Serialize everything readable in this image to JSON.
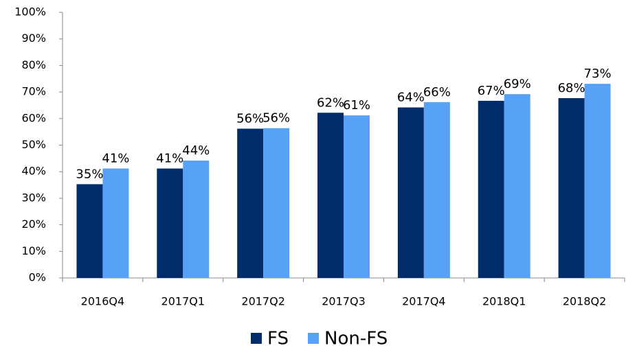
{
  "chart_data": {
    "type": "bar",
    "categories": [
      "2016Q4",
      "2017Q1",
      "2017Q2",
      "2017Q3",
      "2017Q4",
      "2018Q1",
      "2018Q2"
    ],
    "series": [
      {
        "name": "FS",
        "color": "#002d6a",
        "values": [
          35.3,
          41.2,
          56.2,
          62.2,
          64.2,
          66.7,
          67.7
        ],
        "value_labels": [
          "35%",
          "41%",
          "56%",
          "62%",
          "64%",
          "67%",
          "68%"
        ]
      },
      {
        "name": "Non-FS",
        "color": "#57a1f7",
        "values": [
          41.2,
          44.2,
          56.4,
          61.2,
          66.2,
          69.2,
          73.1
        ],
        "value_labels": [
          "41%",
          "44%",
          "56%",
          "61%",
          "66%",
          "69%",
          "73%"
        ]
      }
    ],
    "ylim": [
      0,
      100
    ],
    "yticks": [
      {
        "value": 0,
        "label": "0%"
      },
      {
        "value": 10,
        "label": "10%"
      },
      {
        "value": 20,
        "label": "20%"
      },
      {
        "value": 30,
        "label": "30%"
      },
      {
        "value": 40,
        "label": "40%"
      },
      {
        "value": 50,
        "label": "50%"
      },
      {
        "value": 60,
        "label": "60%"
      },
      {
        "value": 70,
        "label": "70%"
      },
      {
        "value": 80,
        "label": "80%"
      },
      {
        "value": 90,
        "label": "90%"
      },
      {
        "value": 100,
        "label": "100%"
      }
    ],
    "grid": false,
    "legend": "bottom"
  }
}
